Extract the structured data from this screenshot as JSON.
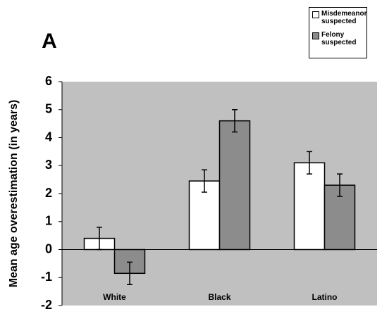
{
  "chart_data": {
    "type": "bar",
    "panel_label": "A",
    "y_label": "Mean age overestimation (in years)",
    "categories": [
      "White",
      "Black",
      "Latino"
    ],
    "series": [
      {
        "name": "Misdemeanor suspected",
        "color": "#ffffff",
        "values": [
          0.4,
          2.45,
          3.1
        ],
        "errors": [
          0.4,
          0.4,
          0.4
        ]
      },
      {
        "name": "Felony suspected",
        "color": "#8c8c8c",
        "values": [
          -0.85,
          4.6,
          2.3
        ],
        "errors": [
          0.4,
          0.4,
          0.4
        ]
      }
    ],
    "ylim": [
      -2,
      6
    ],
    "yticks": [
      -2,
      -1,
      0,
      1,
      2,
      3,
      4,
      5,
      6
    ],
    "grid": false,
    "plot_background": "#c0c0c0",
    "legend": "top-right"
  }
}
